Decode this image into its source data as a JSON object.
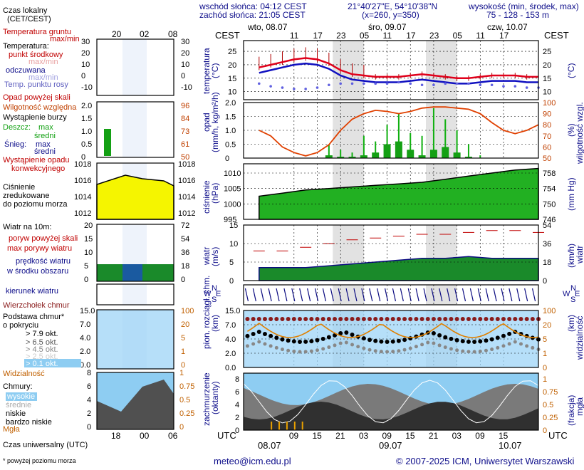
{
  "header": {
    "sunrise": "wschód słońca: 04:12 CEST",
    "sunset": "zachód słońca: 21:05 CEST",
    "coords": "21°40'27\"E, 54°10'38\"N",
    "grid": "(x=260, y=350)",
    "elev_title": "wysokość (min, środek, max)",
    "elev_values": "75 - 128 - 153 m"
  },
  "cest": "CEST",
  "utc": "UTC",
  "days": [
    "wto, 08.07",
    "śro, 09.07",
    "czw, 10.07"
  ],
  "days_bottom": [
    "08.07",
    "09.07",
    "10.07"
  ],
  "cest_ticks": [
    "11",
    "17",
    "23",
    "05",
    "11",
    "17",
    "23",
    "05",
    "11",
    "17"
  ],
  "utc_ticks": [
    "09",
    "15",
    "21",
    "03",
    "09",
    "15",
    "21",
    "03",
    "09",
    "15"
  ],
  "legend_top": {
    "local_time": "Czas lokalny",
    "local_time2": "(CET/CEST)",
    "ticks": [
      "20",
      "02",
      "08"
    ]
  },
  "legend_bottom": {
    "utc": "Czas uniwersalny (UTC)",
    "ticks": [
      "18",
      "00",
      "06"
    ]
  },
  "legend": {
    "ground_temp": "Temperatura gruntu",
    "ground_minmax": "max/min",
    "temperature": "Temperatura:",
    "mid_point": "punkt środkowy",
    "max_min": "max/min",
    "feels": "odczuwana",
    "feels_minmax": "max/min",
    "dew": "Temp. punktu rosy",
    "precip_above": "Opad powyżej skali",
    "rh": "Wilgotność względna",
    "storm": "Wystąpienie burzy",
    "rain": "Deszcz:",
    "max": "max",
    "mean": "średni",
    "snow": "Śnieg:",
    "precip_occ1": "Wystąpienie opadu",
    "precip_occ2": "konwekcyjnego",
    "pressure1": "Ciśnienie",
    "pressure2": "zredukowane",
    "pressure3": "do poziomu morza",
    "wind": "Wiatr na 10m:",
    "gust_above": "poryw powyżej skali",
    "gust_max": "max porywy wiatru",
    "wind_mean1": "prędkość wiatru",
    "wind_mean2": "w środku obszaru",
    "wind_dir": "kierunek wiatru",
    "cloud_top": "Wierzchołek chmur",
    "cloud_base1": "Podstawa chmur*",
    "cloud_base2": "o pokryciu",
    "okt": [
      "> 7.9 okt.",
      "> 6.5 okt.",
      "> 4.5 okt.",
      "> 2.5 okt.",
      "> 0.1 okt."
    ],
    "visibility": "Widzialność",
    "clouds": "Chmury:",
    "high": "wysokie",
    "mid": "średnie",
    "low": "niskie",
    "very_low": "bardzo niskie",
    "fog": "Mgła"
  },
  "footnote": "* powyżej poziomu morza",
  "email": "meteo@icm.edu.pl",
  "copyright": "© 2007-2025 ICM, Uniwersytet Warszawski",
  "panels": {
    "temp": {
      "label": "temperatura",
      "unit": "(°C)",
      "ticks": [
        "25",
        "20",
        "15",
        "10"
      ],
      "legend_ticks": [
        "30",
        "20",
        "10",
        "0",
        "-10"
      ]
    },
    "precip": {
      "label1": "opad",
      "label2": "(mm/h, kg/m²/h)",
      "rlabel": "wilgotność wzgl.",
      "runit": "(%)",
      "ticks": [
        "2.0",
        "1.5",
        "1.0",
        "0.5",
        "0"
      ],
      "rticks": [
        "100",
        "90",
        "80",
        "70",
        "60",
        "50"
      ],
      "lticks": [
        "2.0",
        "1.5",
        "1.0",
        "0.5",
        "0"
      ],
      "lrticks": [
        "96",
        "84",
        "73",
        "61",
        "50"
      ]
    },
    "pressure": {
      "label1": "ciśnienie",
      "unit": "(hPa)",
      "runit": "(mm Hg)",
      "ticks": [
        "1010",
        "1005",
        "1000",
        "995"
      ],
      "rticks": [
        "758",
        "754",
        "750",
        "746"
      ],
      "lticks": [
        "1018",
        "1016",
        "1014",
        "1012"
      ]
    },
    "wind": {
      "label": "wiatr",
      "unit": "(m/s)",
      "runit": "(km/h)",
      "rlabel": "wiatr",
      "ticks": [
        "15",
        "10",
        "5",
        "0"
      ],
      "rticks": [
        "54",
        "36",
        "18",
        "0"
      ],
      "lticks": [
        "20",
        "15",
        "10",
        "5",
        "0"
      ],
      "lrticks": [
        "72",
        "54",
        "36",
        "18",
        "0"
      ]
    },
    "compass": {
      "n": "N",
      "w": "W",
      "s": "S",
      "e": "E"
    },
    "cloudbase": {
      "label1": "pion. rozciągł. chm.",
      "unit": "(km)",
      "rlabel": "widzialność",
      "runit": "(km)",
      "ticks": [
        "15.0",
        "7.0",
        "4.0",
        "2.0",
        "0.0"
      ],
      "rticks": [
        "100",
        "20",
        "5",
        "1",
        "0"
      ]
    },
    "clouds": {
      "label1": "zachmurzenie",
      "unit": "(oktanty)",
      "rlabel": "mgła",
      "runit": "(frakcja)",
      "ticks": [
        "8",
        "6",
        "4",
        "2",
        "0"
      ],
      "rticks": [
        "1",
        "0.75",
        "0.5",
        "0.25",
        "0"
      ]
    }
  },
  "colors": {
    "night": "#e2e2e2",
    "temp": "#e0001b",
    "feels": "#1010c0",
    "dew": "#6060e0",
    "rh": "#e04000",
    "precip": "#10b010",
    "pressure": "#22b022",
    "wind": "#0070e0",
    "gust": "#c00000",
    "legend_bg": "#eef3fb"
  },
  "chart_data": [
    {
      "type": "line",
      "name": "temperature",
      "x_hours_utc": [
        0,
        3,
        6,
        9,
        12,
        15,
        18,
        21,
        24,
        27,
        30,
        33,
        36,
        39,
        42,
        45,
        48,
        51,
        54,
        57,
        60,
        63,
        66,
        69,
        72
      ],
      "series": [
        {
          "name": "punkt środkowy",
          "values": [
            19,
            20,
            21,
            22,
            22.5,
            22,
            20.5,
            18,
            16.5,
            16,
            15.5,
            15.5,
            15.5,
            16,
            16.5,
            16,
            15.5,
            15,
            15,
            15.5,
            16,
            16,
            16,
            15.5,
            15.5
          ]
        },
        {
          "name": "odczuwana",
          "values": [
            17,
            18,
            19,
            20,
            20.5,
            20,
            18.5,
            16,
            14.5,
            14,
            13.5,
            13.5,
            13.5,
            14,
            14.5,
            14,
            13.5,
            13,
            13,
            13.5,
            14,
            14,
            14,
            13.5,
            13.5
          ]
        },
        {
          "name": "Temp. punktu rosy",
          "values": [
            13,
            12,
            11.5,
            11,
            11,
            11.5,
            12.5,
            13,
            13,
            13,
            13,
            13,
            13.5,
            13,
            12.5,
            12.5,
            13,
            13,
            13,
            12.5,
            12.5,
            12,
            12,
            11.5,
            11.5
          ]
        }
      ],
      "ylim": [
        7,
        29
      ]
    },
    {
      "type": "bar",
      "name": "precipitation",
      "x_hours_utc": [
        0,
        3,
        6,
        9,
        12,
        15,
        18,
        21,
        24,
        27,
        30,
        33,
        36,
        39,
        42,
        45,
        48,
        51,
        54,
        57,
        60,
        63,
        66,
        69,
        72
      ],
      "series": [
        {
          "name": "max",
          "values": [
            0,
            0,
            0,
            0,
            0,
            0,
            0.5,
            0.3,
            0.2,
            0.8,
            0.6,
            1.2,
            1.6,
            0.9,
            0.8,
            1.8,
            1.4,
            1.0,
            0.5,
            0.1,
            0,
            0,
            0,
            0,
            0
          ]
        },
        {
          "name": "średni",
          "values": [
            0,
            0,
            0,
            0,
            0,
            0,
            0.1,
            0.05,
            0.05,
            0.1,
            0.2,
            0.5,
            0.6,
            0.3,
            0.1,
            0.3,
            0.4,
            0.2,
            0.05,
            0,
            0,
            0,
            0,
            0,
            0
          ]
        },
        {
          "name": "Wilgotność względna",
          "values": [
            75,
            70,
            60,
            55,
            52,
            55,
            62,
            75,
            85,
            90,
            93,
            92,
            90,
            92,
            95,
            96,
            96,
            95,
            94,
            90,
            82,
            75,
            72,
            75,
            80
          ]
        }
      ],
      "ylim": [
        0,
        2.0
      ]
    },
    {
      "type": "area",
      "name": "pressure",
      "x_hours_utc": [
        0,
        6,
        12,
        18,
        24,
        30,
        36,
        42,
        48,
        54,
        60,
        66,
        72
      ],
      "values": [
        1002.5,
        1003.5,
        1004.5,
        1005,
        1005.5,
        1006,
        1006.5,
        1007,
        1008,
        1009,
        1010,
        1011,
        1011.5
      ],
      "ylim": [
        995,
        1013
      ]
    },
    {
      "type": "line",
      "name": "wind",
      "x_hours_utc": [
        0,
        6,
        12,
        18,
        24,
        30,
        36,
        42,
        48,
        54,
        60,
        66,
        72
      ],
      "series": [
        {
          "name": "prędkość wiatru",
          "values": [
            3.5,
            3.5,
            3.5,
            4,
            4.5,
            5,
            5.5,
            6,
            6,
            6.5,
            6,
            6,
            6
          ]
        },
        {
          "name": "max porywy wiatru",
          "values": [
            8,
            8,
            9,
            10,
            11,
            11.5,
            12,
            12.5,
            12.5,
            13,
            13.5,
            13.5,
            13
          ]
        }
      ],
      "ylim": [
        0,
        15
      ]
    }
  ]
}
